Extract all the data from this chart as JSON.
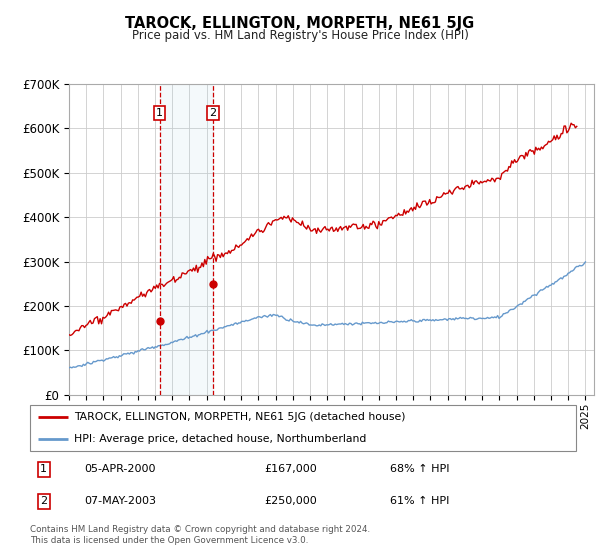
{
  "title": "TAROCK, ELLINGTON, MORPETH, NE61 5JG",
  "subtitle": "Price paid vs. HM Land Registry's House Price Index (HPI)",
  "legend_label_red": "TAROCK, ELLINGTON, MORPETH, NE61 5JG (detached house)",
  "legend_label_blue": "HPI: Average price, detached house, Northumberland",
  "transaction1_date": "05-APR-2000",
  "transaction1_price": "£167,000",
  "transaction1_hpi": "68% ↑ HPI",
  "transaction2_date": "07-MAY-2003",
  "transaction2_price": "£250,000",
  "transaction2_hpi": "61% ↑ HPI",
  "footnote": "Contains HM Land Registry data © Crown copyright and database right 2024.\nThis data is licensed under the Open Government Licence v3.0.",
  "xmin": 1995.0,
  "xmax": 2025.5,
  "ymin": 0,
  "ymax": 700000,
  "yticks": [
    0,
    100000,
    200000,
    300000,
    400000,
    500000,
    600000,
    700000
  ],
  "ytick_labels": [
    "£0",
    "£100K",
    "£200K",
    "£300K",
    "£400K",
    "£500K",
    "£600K",
    "£700K"
  ],
  "background_color": "#ffffff",
  "plot_bg_color": "#ffffff",
  "grid_color": "#cccccc",
  "red_color": "#cc0000",
  "blue_color": "#6699cc",
  "marker1_x": 2000.27,
  "marker1_y": 167000,
  "marker2_x": 2003.36,
  "marker2_y": 250000,
  "shade_x1": 2000.27,
  "shade_x2": 2003.36
}
